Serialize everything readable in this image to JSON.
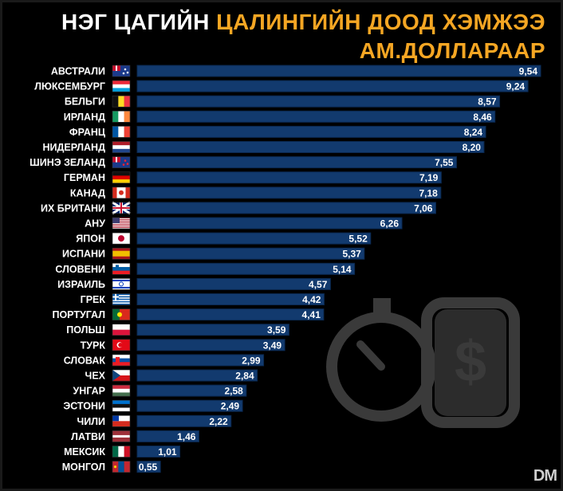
{
  "header": {
    "title_part1": "НЭГ ЦАГИЙН",
    "title_part2": "ЦАЛИНГИЙН ДООД ХЭМЖЭЭ",
    "title_line2": "АМ.ДОЛЛАРААР"
  },
  "logo_text": "DM",
  "colors": {
    "bar": "#123a6e",
    "bar_edge": "#0a2850",
    "label": "#ffffff",
    "title_accent": "#f5a623",
    "background": "#000000"
  },
  "chart_data": {
    "type": "bar",
    "orientation": "horizontal",
    "categories": [
      "АВСТРАЛИ",
      "ЛЮКСЕМБУРГ",
      "БЕЛЬГИ",
      "ИРЛАНД",
      "ФРАНЦ",
      "НИДЕРЛАНД",
      "ШИНЭ ЗЕЛАНД",
      "ГЕРМАН",
      "КАНАД",
      "ИХ БРИТАНИ",
      "АНУ",
      "ЯПОН",
      "ИСПАНИ",
      "СЛОВЕНИ",
      "ИЗРАИЛЬ",
      "ГРЕК",
      "ПОРТУГАЛ",
      "ПОЛЬШ",
      "ТУРК",
      "СЛОВАК",
      "ЧЕХ",
      "УНГАР",
      "ЭСТОНИ",
      "ЧИЛИ",
      "ЛАТВИ",
      "МЕКСИК",
      "МОНГОЛ"
    ],
    "values": [
      9.54,
      9.24,
      8.57,
      8.46,
      8.24,
      8.2,
      7.55,
      7.19,
      7.18,
      7.06,
      6.26,
      5.52,
      5.37,
      5.14,
      4.57,
      4.42,
      4.41,
      3.59,
      3.49,
      2.99,
      2.84,
      2.58,
      2.49,
      2.22,
      1.46,
      1.01,
      0.55
    ],
    "value_labels": [
      "9,54",
      "9,24",
      "8,57",
      "8,46",
      "8,24",
      "8,20",
      "7,55",
      "7,19",
      "7,18",
      "7,06",
      "6,26",
      "5,52",
      "5,37",
      "5,14",
      "4,57",
      "4,42",
      "4,41",
      "3,59",
      "3,49",
      "2,99",
      "2,84",
      "2,58",
      "2,49",
      "2,22",
      "1,46",
      "1,01",
      "0,55"
    ],
    "flag_icons": [
      "australia-flag-icon",
      "luxembourg-flag-icon",
      "belgium-flag-icon",
      "ireland-flag-icon",
      "france-flag-icon",
      "netherlands-flag-icon",
      "new-zealand-flag-icon",
      "germany-flag-icon",
      "canada-flag-icon",
      "uk-flag-icon",
      "usa-flag-icon",
      "japan-flag-icon",
      "spain-flag-icon",
      "slovenia-flag-icon",
      "israel-flag-icon",
      "greece-flag-icon",
      "portugal-flag-icon",
      "poland-flag-icon",
      "turkey-flag-icon",
      "slovakia-flag-icon",
      "czech-flag-icon",
      "hungary-flag-icon",
      "estonia-flag-icon",
      "chile-flag-icon",
      "latvia-flag-icon",
      "mexico-flag-icon",
      "mongolia-flag-icon"
    ],
    "xlim": [
      0,
      9.54
    ],
    "grid": false,
    "legend": "none"
  }
}
